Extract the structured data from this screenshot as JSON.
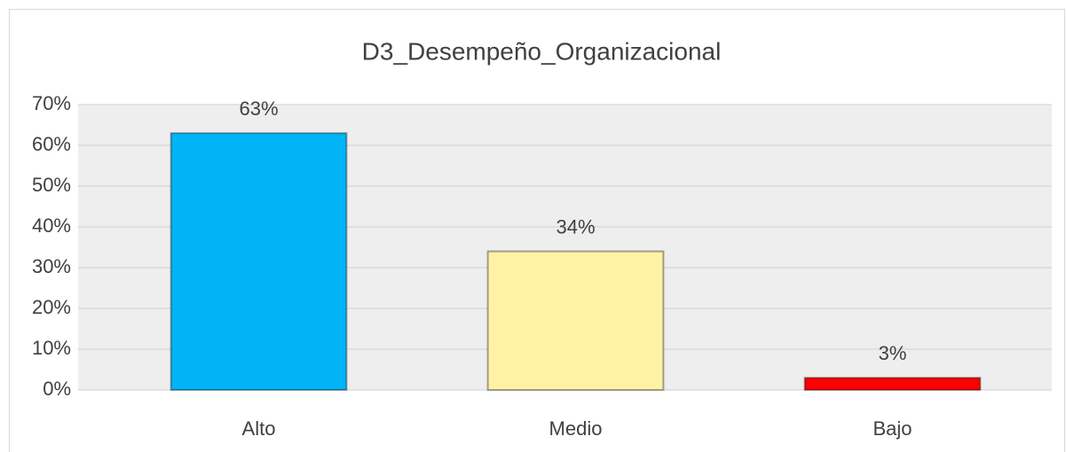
{
  "chart_data": {
    "type": "bar",
    "title": "D3_Desempeño_Organizacional",
    "categories": [
      "Alto",
      "Medio",
      "Bajo"
    ],
    "values": [
      63,
      34,
      3
    ],
    "value_labels": [
      "63%",
      "34%",
      "3%"
    ],
    "colors": [
      "#00b4f5",
      "#fff2a6",
      "#ff0000"
    ],
    "ylim": [
      0,
      70
    ],
    "yticks": [
      {
        "value": 0,
        "label": "0%"
      },
      {
        "value": 10,
        "label": "10%"
      },
      {
        "value": 20,
        "label": "20%"
      },
      {
        "value": 30,
        "label": "30%"
      },
      {
        "value": 40,
        "label": "40%"
      },
      {
        "value": 50,
        "label": "50%"
      },
      {
        "value": 60,
        "label": "60%"
      },
      {
        "value": 70,
        "label": "70%"
      }
    ],
    "grid": true
  }
}
